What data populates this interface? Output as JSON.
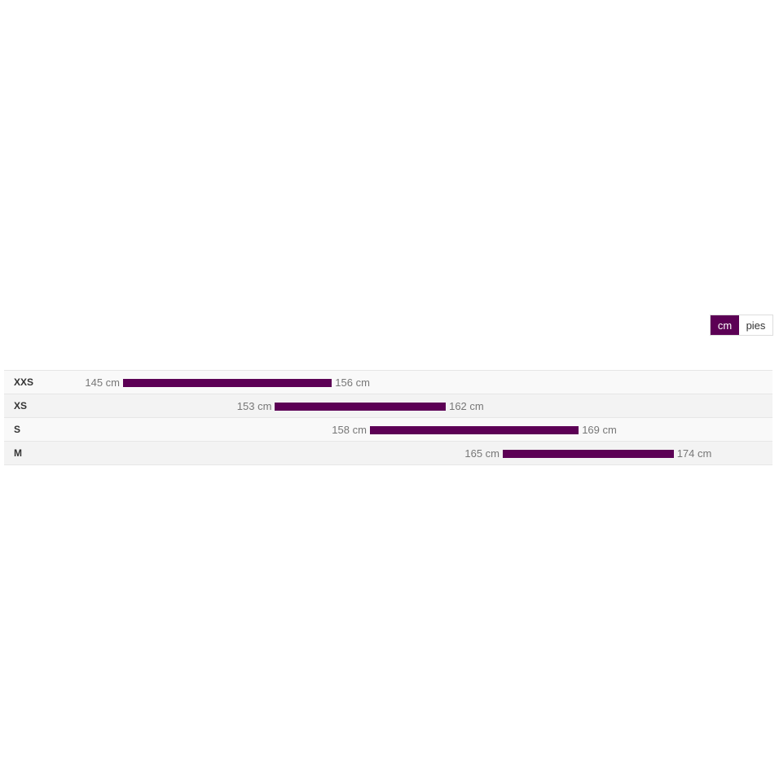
{
  "unit_toggle": {
    "options": [
      {
        "label": "cm",
        "selected": true
      },
      {
        "label": "pies",
        "selected": false
      }
    ]
  },
  "colors": {
    "accent": "#5c0055"
  },
  "sizes": [
    {
      "size": "XXS",
      "min": 145,
      "max": 156,
      "min_label": "145 cm",
      "max_label": "156 cm"
    },
    {
      "size": "XS",
      "min": 153,
      "max": 162,
      "min_label": "153 cm",
      "max_label": "162 cm"
    },
    {
      "size": "S",
      "min": 158,
      "max": 169,
      "min_label": "158 cm",
      "max_label": "169 cm"
    },
    {
      "size": "M",
      "min": 165,
      "max": 174,
      "min_label": "165 cm",
      "max_label": "174 cm"
    }
  ]
}
